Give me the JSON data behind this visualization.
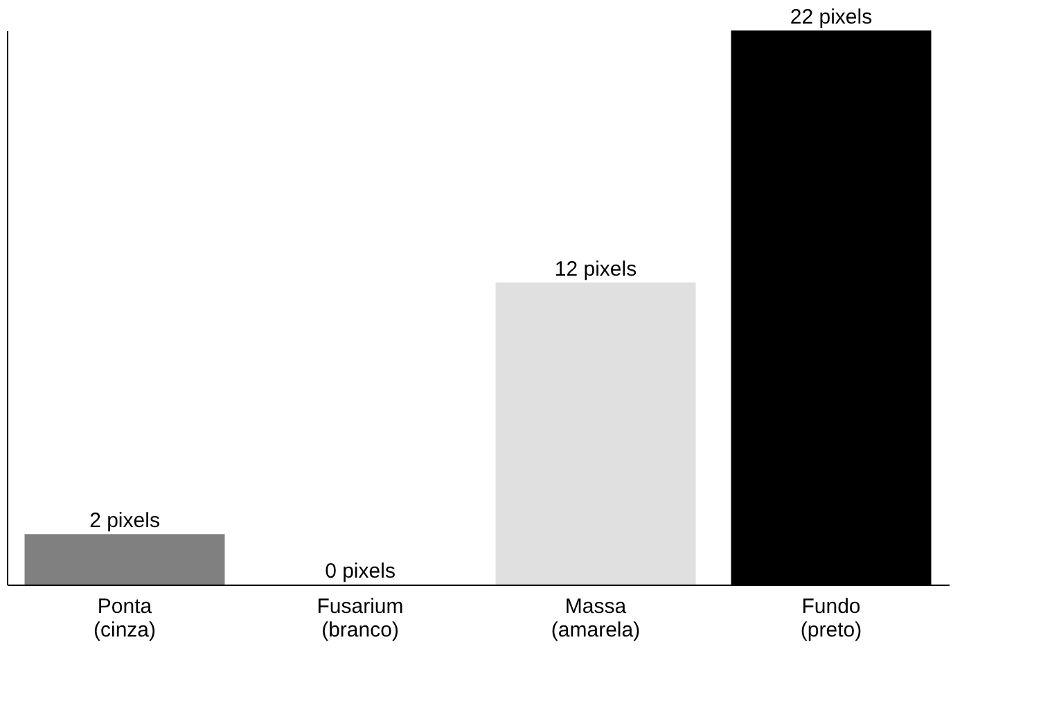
{
  "chart_data": {
    "type": "bar",
    "categories": [
      "Ponta (cinza)",
      "Fusarium (branco)",
      "Massa (amarela)",
      "Fundo (preto)"
    ],
    "values": [
      2,
      0,
      12,
      22
    ],
    "colors": [
      "#808080",
      "#ffffff",
      "#e0e0e0",
      "#000000"
    ],
    "value_labels": [
      "2 pixels",
      "0 pixels",
      "12 pixels",
      "22 pixels"
    ],
    "tick_labels": "x",
    "grid": false,
    "legend": false
  }
}
